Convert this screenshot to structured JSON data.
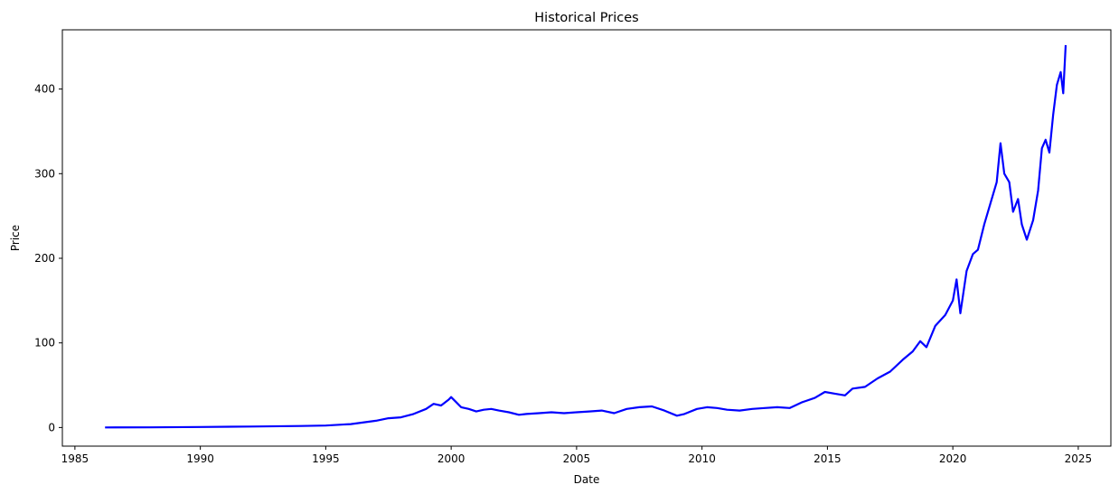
{
  "chart_data": {
    "type": "line",
    "title": "Historical Prices",
    "xlabel": "Date",
    "ylabel": "Price",
    "xlim": [
      1984.5,
      2026.3
    ],
    "ylim": [
      -22,
      470
    ],
    "x_ticks": [
      1985,
      1990,
      1995,
      2000,
      2005,
      2010,
      2015,
      2020,
      2025
    ],
    "y_ticks": [
      0,
      100,
      200,
      300,
      400
    ],
    "grid": false,
    "legend": "none",
    "line_color": "#0000ff",
    "series": [
      {
        "x": [
          1986.2,
          1988,
          1990,
          1992,
          1994,
          1995,
          1996,
          1997,
          1997.5,
          1998,
          1998.5,
          1999,
          1999.3,
          1999.6,
          1999.9,
          2000.0,
          2000.2,
          2000.4,
          2000.7,
          2001.0,
          2001.3,
          2001.6,
          2001.9,
          2002.3,
          2002.7,
          2003.0,
          2003.5,
          2004.0,
          2004.5,
          2005.0,
          2005.5,
          2006.0,
          2006.5,
          2007.0,
          2007.5,
          2008.0,
          2008.5,
          2009.0,
          2009.3,
          2009.8,
          2010.2,
          2010.6,
          2011.0,
          2011.5,
          2012.0,
          2012.5,
          2013.0,
          2013.5,
          2014.0,
          2014.5,
          2014.9,
          2015.3,
          2015.7,
          2016.0,
          2016.5,
          2017.0,
          2017.5,
          2018.0,
          2018.4,
          2018.7,
          2018.95,
          2019.3,
          2019.7,
          2020.0,
          2020.15,
          2020.3,
          2020.55,
          2020.8,
          2021.0,
          2021.25,
          2021.5,
          2021.75,
          2021.9,
          2022.05,
          2022.25,
          2022.4,
          2022.6,
          2022.75,
          2022.95,
          2023.2,
          2023.4,
          2023.55,
          2023.7,
          2023.85,
          2024.0,
          2024.15,
          2024.3,
          2024.4,
          2024.5
        ],
        "y": [
          0.1,
          0.2,
          0.6,
          1.2,
          1.8,
          2.3,
          4.0,
          8.0,
          11.0,
          12.0,
          16.0,
          22.0,
          28.0,
          26.0,
          33.0,
          36.0,
          30.0,
          24.0,
          22.0,
          19.0,
          21.0,
          22.0,
          20.0,
          18.0,
          15.0,
          16.0,
          17.0,
          18.0,
          17.0,
          18.0,
          19.0,
          20.0,
          17.0,
          22.0,
          24.0,
          25.0,
          20.0,
          14.0,
          16.0,
          22.0,
          24.0,
          23.0,
          21.0,
          20.0,
          22.0,
          23.0,
          24.0,
          23.0,
          30.0,
          35.0,
          42.0,
          40.0,
          38.0,
          46.0,
          48.0,
          58.0,
          66.0,
          80.0,
          90.0,
          102.0,
          95.0,
          120.0,
          133.0,
          150.0,
          175.0,
          135.0,
          185.0,
          205.0,
          210.0,
          240.0,
          265.0,
          290.0,
          336.0,
          300.0,
          290.0,
          255.0,
          270.0,
          240.0,
          222.0,
          245.0,
          280.0,
          330.0,
          340.0,
          325.0,
          370.0,
          405.0,
          420.0,
          395.0,
          452.0
        ]
      }
    ]
  }
}
